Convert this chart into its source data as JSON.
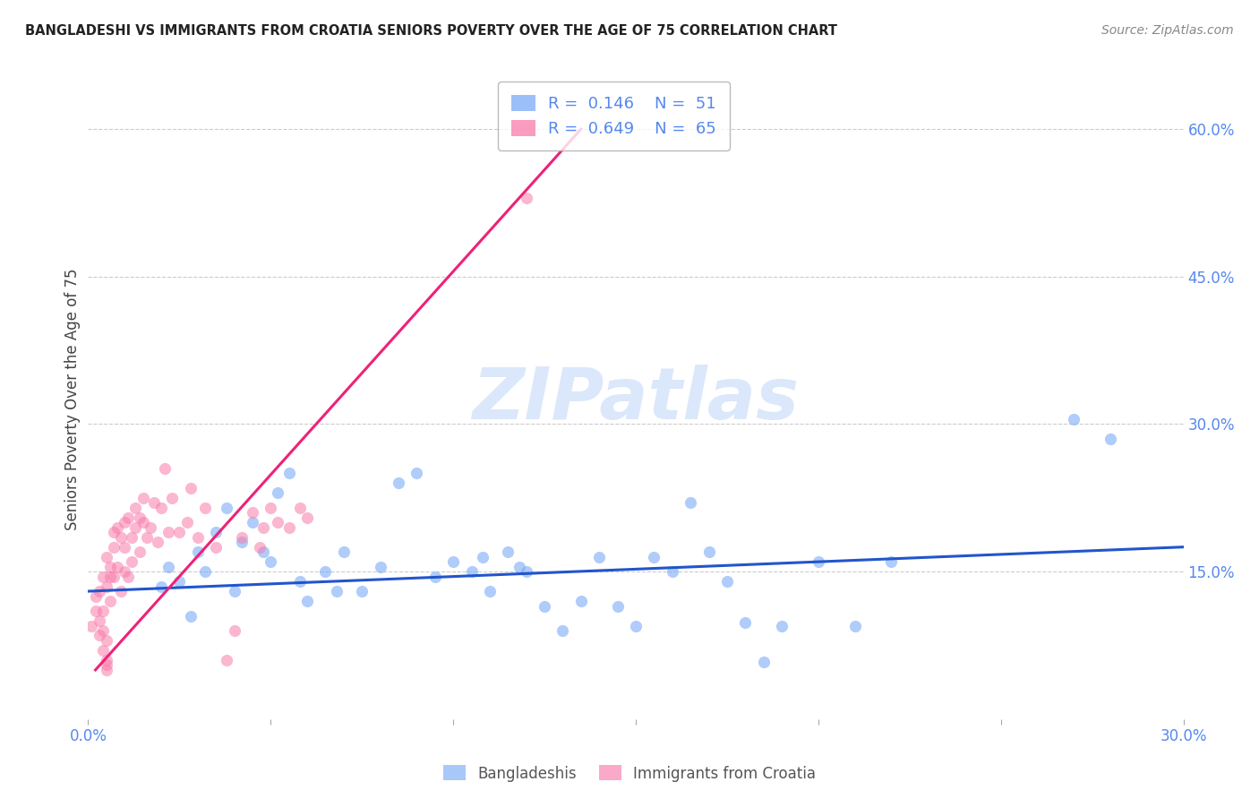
{
  "title": "BANGLADESHI VS IMMIGRANTS FROM CROATIA SENIORS POVERTY OVER THE AGE OF 75 CORRELATION CHART",
  "source": "Source: ZipAtlas.com",
  "ylabel": "Seniors Poverty Over the Age of 75",
  "xlim": [
    0.0,
    0.3
  ],
  "ylim": [
    0.0,
    0.65
  ],
  "xticks": [
    0.0,
    0.05,
    0.1,
    0.15,
    0.2,
    0.25,
    0.3
  ],
  "xtick_labels": [
    "0.0%",
    "",
    "",
    "",
    "",
    "",
    "30.0%"
  ],
  "ytick_positions": [
    0.15,
    0.3,
    0.45,
    0.6
  ],
  "ytick_labels": [
    "15.0%",
    "30.0%",
    "45.0%",
    "60.0%"
  ],
  "grid_color": "#cccccc",
  "background_color": "#ffffff",
  "watermark": "ZIPatlas",
  "legend_val1": "0.146",
  "legend_count1": "51",
  "legend_val2": "0.649",
  "legend_count2": "65",
  "blue_color": "#7aabf7",
  "pink_color": "#f97bab",
  "blue_line_color": "#2255cc",
  "pink_line_color": "#ee2277",
  "axis_color": "#5588ee",
  "title_color": "#222222",
  "blue_scatter_x": [
    0.02,
    0.022,
    0.025,
    0.028,
    0.03,
    0.032,
    0.035,
    0.038,
    0.04,
    0.042,
    0.045,
    0.048,
    0.05,
    0.052,
    0.055,
    0.058,
    0.06,
    0.065,
    0.068,
    0.07,
    0.075,
    0.08,
    0.085,
    0.09,
    0.095,
    0.1,
    0.105,
    0.108,
    0.11,
    0.115,
    0.118,
    0.12,
    0.125,
    0.13,
    0.135,
    0.14,
    0.145,
    0.15,
    0.155,
    0.16,
    0.165,
    0.17,
    0.175,
    0.18,
    0.185,
    0.19,
    0.2,
    0.21,
    0.22,
    0.27,
    0.28
  ],
  "blue_scatter_y": [
    0.135,
    0.155,
    0.14,
    0.105,
    0.17,
    0.15,
    0.19,
    0.215,
    0.13,
    0.18,
    0.2,
    0.17,
    0.16,
    0.23,
    0.25,
    0.14,
    0.12,
    0.15,
    0.13,
    0.17,
    0.13,
    0.155,
    0.24,
    0.25,
    0.145,
    0.16,
    0.15,
    0.165,
    0.13,
    0.17,
    0.155,
    0.15,
    0.115,
    0.09,
    0.12,
    0.165,
    0.115,
    0.095,
    0.165,
    0.15,
    0.22,
    0.17,
    0.14,
    0.098,
    0.058,
    0.095,
    0.16,
    0.095,
    0.16,
    0.305,
    0.285
  ],
  "pink_scatter_x": [
    0.001,
    0.002,
    0.002,
    0.003,
    0.003,
    0.003,
    0.004,
    0.004,
    0.004,
    0.004,
    0.005,
    0.005,
    0.005,
    0.005,
    0.005,
    0.005,
    0.006,
    0.006,
    0.006,
    0.007,
    0.007,
    0.007,
    0.008,
    0.008,
    0.009,
    0.009,
    0.01,
    0.01,
    0.01,
    0.011,
    0.011,
    0.012,
    0.012,
    0.013,
    0.013,
    0.014,
    0.014,
    0.015,
    0.015,
    0.016,
    0.017,
    0.018,
    0.019,
    0.02,
    0.021,
    0.022,
    0.023,
    0.025,
    0.027,
    0.028,
    0.03,
    0.032,
    0.035,
    0.038,
    0.04,
    0.042,
    0.045,
    0.047,
    0.048,
    0.05,
    0.052,
    0.055,
    0.058,
    0.06,
    0.12
  ],
  "pink_scatter_y": [
    0.095,
    0.11,
    0.125,
    0.1,
    0.13,
    0.085,
    0.07,
    0.09,
    0.11,
    0.145,
    0.135,
    0.08,
    0.06,
    0.055,
    0.05,
    0.165,
    0.155,
    0.145,
    0.12,
    0.145,
    0.175,
    0.19,
    0.155,
    0.195,
    0.185,
    0.13,
    0.175,
    0.2,
    0.15,
    0.205,
    0.145,
    0.185,
    0.16,
    0.195,
    0.215,
    0.17,
    0.205,
    0.225,
    0.2,
    0.185,
    0.195,
    0.22,
    0.18,
    0.215,
    0.255,
    0.19,
    0.225,
    0.19,
    0.2,
    0.235,
    0.185,
    0.215,
    0.175,
    0.06,
    0.09,
    0.185,
    0.21,
    0.175,
    0.195,
    0.215,
    0.2,
    0.195,
    0.215,
    0.205,
    0.53
  ],
  "blue_trend_x": [
    0.0,
    0.3
  ],
  "blue_trend_y": [
    0.13,
    0.175
  ],
  "pink_trend_x": [
    0.002,
    0.135
  ],
  "pink_trend_y": [
    0.05,
    0.6
  ]
}
